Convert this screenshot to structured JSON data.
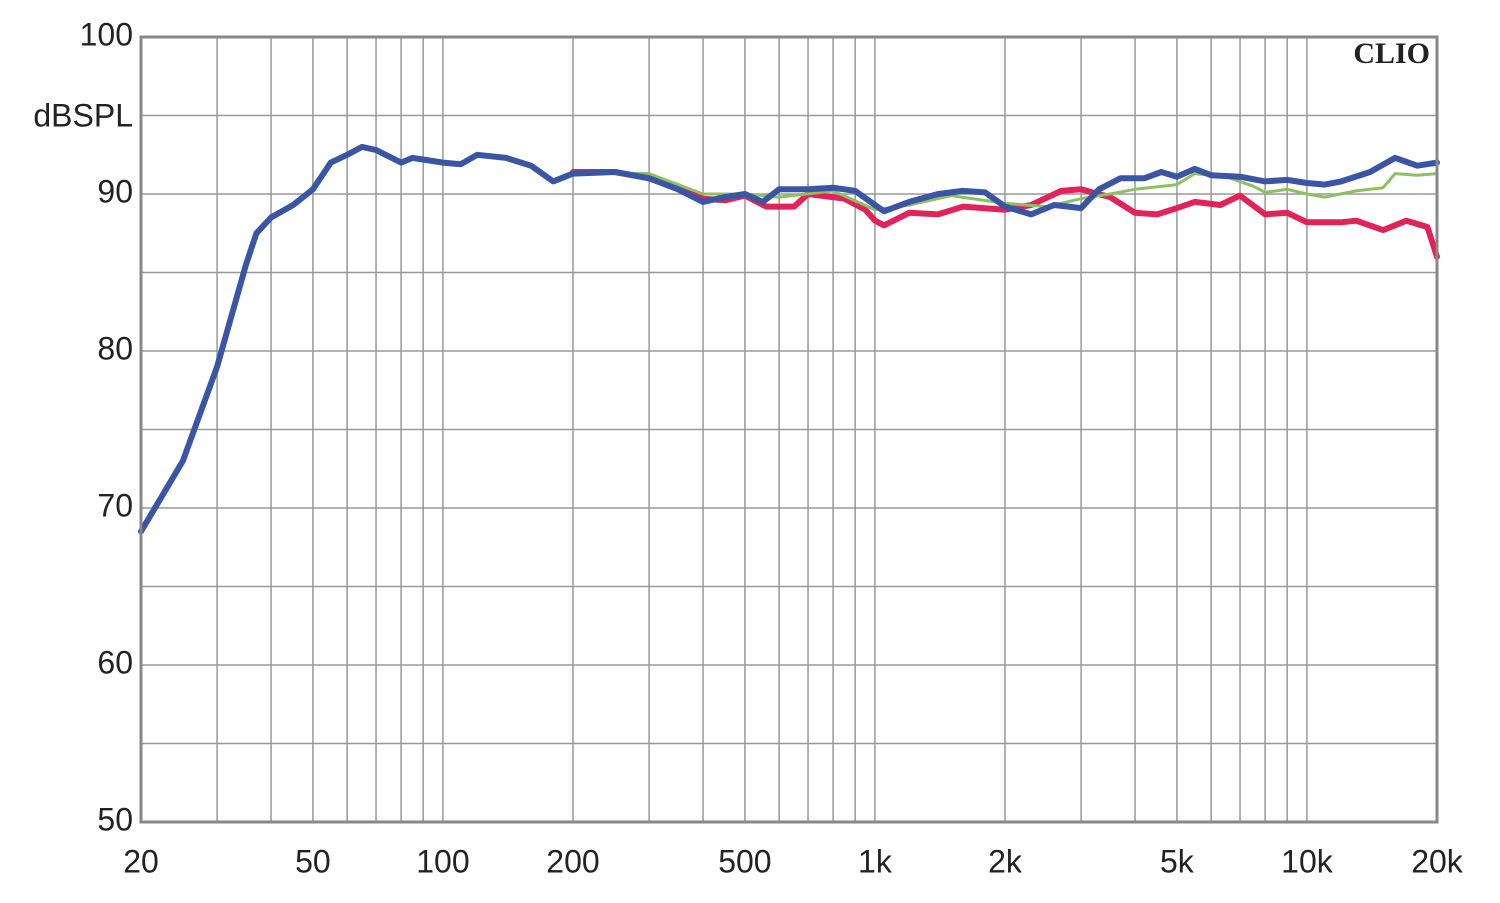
{
  "chart_data": {
    "type": "line",
    "ylabel": "dBSPL",
    "annotation": "CLIO",
    "xscale": "log",
    "grid": true,
    "xlim": [
      20,
      20000
    ],
    "xticks": [
      20,
      50,
      100,
      200,
      500,
      {
        "value": 1000,
        "label": "1k"
      },
      {
        "value": 2000,
        "label": "2k"
      },
      {
        "value": 5000,
        "label": "5k"
      },
      {
        "value": 10000,
        "label": "10k"
      },
      {
        "value": 20000,
        "label": "20k"
      }
    ],
    "xminor": [
      30,
      40,
      60,
      70,
      80,
      90,
      300,
      400,
      600,
      700,
      800,
      900,
      3000,
      4000,
      6000,
      7000,
      8000,
      9000
    ],
    "ylim": [
      50,
      100
    ],
    "yticks": [
      50,
      60,
      70,
      80,
      90,
      100
    ],
    "yminor": [
      55,
      65,
      75,
      85,
      95
    ],
    "series": [
      {
        "color": "#e0245a",
        "x": [
          200,
          250,
          300,
          350,
          400,
          450,
          500,
          560,
          650,
          700,
          850,
          950,
          1000,
          1050,
          1200,
          1400,
          1600,
          2000,
          2300,
          2700,
          3000,
          3500,
          4000,
          4500,
          5000,
          5500,
          6300,
          7000,
          8000,
          9000,
          10000,
          12000,
          13000,
          15000,
          17000,
          19000,
          20000
        ],
        "values": [
          91.4,
          91.4,
          91,
          90.5,
          89.7,
          89.6,
          89.9,
          89.2,
          89.2,
          90,
          89.7,
          89,
          88.3,
          88,
          88.8,
          88.7,
          89.2,
          89,
          89.3,
          90.2,
          90.3,
          89.8,
          88.8,
          88.7,
          89.1,
          89.5,
          89.3,
          89.9,
          88.7,
          88.8,
          88.2,
          88.2,
          88.3,
          87.7,
          88.3,
          87.9,
          86
        ]
      },
      {
        "color": "#8cc060",
        "x": [
          200,
          300,
          400,
          500,
          600,
          800,
          1000,
          1200,
          1500,
          2000,
          2500,
          3000,
          3500,
          4000,
          5000,
          5500,
          6500,
          7500,
          8000,
          9000,
          10000,
          11000,
          13000,
          15000,
          16000,
          18000,
          20000
        ],
        "values": [
          91.4,
          91.3,
          90,
          90,
          89.8,
          90.2,
          89,
          89.3,
          89.9,
          89.4,
          89.2,
          89.7,
          90,
          90.3,
          90.6,
          91.3,
          91.1,
          90.5,
          90.1,
          90.3,
          90,
          89.8,
          90.2,
          90.4,
          91.3,
          91.2,
          91.3
        ]
      },
      {
        "color": "#3a55a4",
        "x": [
          20,
          25,
          30,
          35,
          37,
          40,
          45,
          50,
          55,
          60,
          65,
          70,
          80,
          85,
          100,
          110,
          120,
          140,
          160,
          180,
          200,
          250,
          300,
          350,
          400,
          450,
          500,
          550,
          600,
          700,
          800,
          900,
          1000,
          1050,
          1200,
          1400,
          1600,
          1800,
          2000,
          2300,
          2600,
          3000,
          3300,
          3700,
          4200,
          4600,
          5000,
          5500,
          6000,
          7000,
          8000,
          9000,
          10000,
          11000,
          12000,
          14000,
          16000,
          18000,
          20000
        ],
        "values": [
          68.5,
          73,
          79,
          85.5,
          87.5,
          88.5,
          89.3,
          90.3,
          92,
          92.5,
          93,
          92.8,
          92,
          92.3,
          92,
          91.9,
          92.5,
          92.3,
          91.8,
          90.8,
          91.3,
          91.4,
          91,
          90.3,
          89.5,
          89.8,
          90,
          89.5,
          90.3,
          90.3,
          90.4,
          90.2,
          89.3,
          88.9,
          89.5,
          90,
          90.2,
          90.1,
          89.2,
          88.7,
          89.3,
          89.1,
          90.3,
          91,
          91,
          91.4,
          91.1,
          91.6,
          91.2,
          91.1,
          90.8,
          90.9,
          90.7,
          90.6,
          90.8,
          91.4,
          92.3,
          91.8,
          92
        ]
      }
    ]
  }
}
